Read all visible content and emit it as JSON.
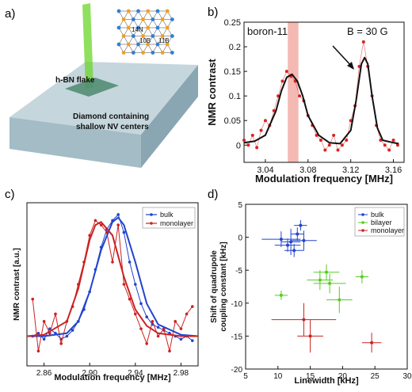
{
  "panel_labels": {
    "a": "a)",
    "b": "b)",
    "c": "c)",
    "d": "d)"
  },
  "illustration": {
    "flake_label": "h-BN flake",
    "substrate_label_line1": "Diamond containing",
    "substrate_label_line2": "shallow NV centers",
    "atom_labels": [
      "14N",
      "10B",
      "11B"
    ],
    "colors": {
      "laser": "#66dd22",
      "nitrogen": "#2f7fd6",
      "boron": "#f0a020",
      "substrate": "#a9bfc7"
    }
  },
  "chart_data": [
    {
      "id": "b",
      "type": "line",
      "title": "",
      "annotations": [
        "boron-11",
        "B = 30 G"
      ],
      "xlabel": "Modulation frequency [MHz]",
      "ylabel": "NMR contrast",
      "xlim": [
        3.02,
        3.17
      ],
      "ylim": [
        -0.035,
        0.25
      ],
      "xticks": [
        "3.04",
        "3.08",
        "3.12",
        "3.16"
      ],
      "yticks": [
        "0",
        "0.05",
        "0.1",
        "0.15",
        "0.2",
        "0.25"
      ],
      "highlight_band": {
        "x": [
          3.061,
          3.071
        ],
        "color": "#f2a8a0"
      },
      "grid": false,
      "series": [
        {
          "name": "",
          "style": "points",
          "color": "#dd2222",
          "x": [
            3.02,
            3.024,
            3.028,
            3.032,
            3.036,
            3.04,
            3.044,
            3.048,
            3.052,
            3.056,
            3.06,
            3.064,
            3.068,
            3.072,
            3.076,
            3.08,
            3.084,
            3.088,
            3.092,
            3.096,
            3.1,
            3.104,
            3.108,
            3.112,
            3.116,
            3.12,
            3.124,
            3.128,
            3.132,
            3.136,
            3.14,
            3.144,
            3.148,
            3.152,
            3.156,
            3.16,
            3.164
          ],
          "y": [
            0.01,
            0.0,
            0.02,
            -0.005,
            0.03,
            0.05,
            0.04,
            0.07,
            0.1,
            0.13,
            0.15,
            0.14,
            0.13,
            0.1,
            0.09,
            0.06,
            0.04,
            0.02,
            0.01,
            -0.01,
            0.0,
            0.02,
            -0.01,
            0.0,
            0.01,
            0.05,
            0.08,
            0.16,
            0.21,
            0.16,
            0.1,
            0.04,
            0.01,
            0.0,
            -0.01,
            0.01,
            0.0
          ]
        },
        {
          "name": "",
          "style": "fit",
          "color": "#111111",
          "x": [
            3.02,
            3.03,
            3.04,
            3.05,
            3.055,
            3.06,
            3.065,
            3.07,
            3.075,
            3.08,
            3.09,
            3.1,
            3.11,
            3.12,
            3.125,
            3.13,
            3.133,
            3.136,
            3.14,
            3.145,
            3.15,
            3.16,
            3.165
          ],
          "y": [
            0.005,
            0.008,
            0.02,
            0.07,
            0.11,
            0.138,
            0.144,
            0.13,
            0.1,
            0.06,
            0.02,
            0.005,
            0.003,
            0.03,
            0.09,
            0.165,
            0.178,
            0.165,
            0.1,
            0.035,
            0.01,
            0.005,
            0.003
          ]
        }
      ]
    },
    {
      "id": "c",
      "type": "line",
      "title": "",
      "xlabel": "Modulation frequency [MHz]",
      "ylabel": "NMR contrast [a.u.]",
      "xlim": [
        2.845,
        2.995
      ],
      "ylim": [
        0,
        1.1
      ],
      "xticks": [
        "2.86",
        "2.90",
        "2.94",
        "2.98"
      ],
      "yticks": [],
      "legend": {
        "position": "top-right",
        "entries": [
          "bulk",
          "monolayer"
        ]
      },
      "grid": false,
      "series": [
        {
          "name": "bulk",
          "color": "#2244cc",
          "x": [
            2.85,
            2.855,
            2.86,
            2.865,
            2.87,
            2.875,
            2.88,
            2.885,
            2.89,
            2.895,
            2.9,
            2.905,
            2.91,
            2.915,
            2.92,
            2.925,
            2.93,
            2.935,
            2.94,
            2.945,
            2.95,
            2.955,
            2.96,
            2.965,
            2.97,
            2.975,
            2.98,
            2.985,
            2.99
          ],
          "y": [
            0.2,
            0.22,
            0.18,
            0.25,
            0.22,
            0.18,
            0.2,
            0.24,
            0.3,
            0.38,
            0.5,
            0.65,
            0.8,
            0.92,
            0.98,
            1.02,
            0.9,
            0.7,
            0.55,
            0.42,
            0.33,
            0.28,
            0.26,
            0.24,
            0.22,
            0.2,
            0.18,
            0.2,
            0.17
          ]
        },
        {
          "name": "monolayer",
          "color": "#cc2222",
          "x": [
            2.85,
            2.855,
            2.86,
            2.865,
            2.87,
            2.875,
            2.88,
            2.885,
            2.89,
            2.895,
            2.9,
            2.905,
            2.91,
            2.915,
            2.92,
            2.925,
            2.93,
            2.935,
            2.94,
            2.945,
            2.95,
            2.955,
            2.96,
            2.965,
            2.97,
            2.975,
            2.98,
            2.985,
            2.99
          ],
          "y": [
            0.45,
            0.1,
            0.3,
            0.22,
            0.35,
            0.15,
            0.3,
            0.4,
            0.55,
            0.7,
            0.88,
            0.98,
            0.95,
            0.9,
            0.7,
            0.95,
            0.55,
            0.45,
            0.35,
            0.25,
            0.15,
            0.3,
            0.2,
            0.25,
            0.1,
            0.3,
            0.25,
            0.35,
            0.4
          ]
        },
        {
          "name": "bulk-fit",
          "color": "#2244cc",
          "x": [
            2.845,
            2.86,
            2.88,
            2.89,
            2.9,
            2.91,
            2.92,
            2.925,
            2.93,
            2.94,
            2.95,
            2.96,
            2.98,
            2.995
          ],
          "y": [
            0.2,
            0.2,
            0.22,
            0.3,
            0.5,
            0.78,
            0.97,
            1.0,
            0.95,
            0.7,
            0.42,
            0.28,
            0.21,
            0.2
          ]
        },
        {
          "name": "monolayer-fit",
          "color": "#cc2222",
          "x": [
            2.845,
            2.86,
            2.88,
            2.89,
            2.9,
            2.905,
            2.91,
            2.92,
            2.93,
            2.94,
            2.95,
            2.96,
            2.98,
            2.995
          ],
          "y": [
            0.2,
            0.21,
            0.3,
            0.52,
            0.85,
            0.95,
            0.97,
            0.88,
            0.6,
            0.38,
            0.27,
            0.22,
            0.2,
            0.2
          ]
        }
      ]
    },
    {
      "id": "d",
      "type": "scatter",
      "title": "",
      "xlabel": "Linewidth [kHz]",
      "ylabel_line1": "Shift of quadrupole",
      "ylabel_line2": "coupling constant [kHz]",
      "xlim": [
        5,
        30
      ],
      "ylim": [
        -20,
        5
      ],
      "xticks": [
        "5",
        "10",
        "15",
        "20",
        "25",
        "30"
      ],
      "yticks": [
        "-20",
        "-15",
        "-10",
        "-5",
        "0",
        "5"
      ],
      "legend": {
        "position": "top-right",
        "entries": [
          "bulk",
          "bilayer",
          "monolayer"
        ]
      },
      "grid": false,
      "series": [
        {
          "name": "bulk",
          "color": "#2244cc",
          "points": [
            {
              "x": 10.5,
              "y": -0.3,
              "xerr": 3.0,
              "yerr": 1.2
            },
            {
              "x": 12.0,
              "y": -0.7,
              "xerr": 1.5,
              "yerr": 2.0
            },
            {
              "x": 13.0,
              "y": 0.5,
              "xerr": 1.0,
              "yerr": 1.0
            },
            {
              "x": 13.5,
              "y": 1.8,
              "xerr": 1.0,
              "yerr": 0.8
            },
            {
              "x": 11.5,
              "y": -1.2,
              "xerr": 2.0,
              "yerr": 1.0
            },
            {
              "x": 14.0,
              "y": -0.5,
              "xerr": 2.0,
              "yerr": 1.5
            },
            {
              "x": 12.5,
              "y": -2.0,
              "xerr": 1.5,
              "yerr": 1.0
            }
          ]
        },
        {
          "name": "bilayer",
          "color": "#55cc22",
          "points": [
            {
              "x": 17.5,
              "y": -5.3,
              "xerr": 2.0,
              "yerr": 1.2
            },
            {
              "x": 16.5,
              "y": -6.5,
              "xerr": 2.0,
              "yerr": 1.5
            },
            {
              "x": 18.0,
              "y": -7.0,
              "xerr": 2.5,
              "yerr": 1.5
            },
            {
              "x": 19.5,
              "y": -9.5,
              "xerr": 2.0,
              "yerr": 2.0
            },
            {
              "x": 23.0,
              "y": -6.0,
              "xerr": 1.0,
              "yerr": 1.0
            },
            {
              "x": 10.5,
              "y": -8.8,
              "xerr": 1.0,
              "yerr": 0.7
            }
          ]
        },
        {
          "name": "monolayer",
          "color": "#cc2222",
          "points": [
            {
              "x": 14.0,
              "y": -12.5,
              "xerr": 5.0,
              "yerr": 2.5
            },
            {
              "x": 15.0,
              "y": -15.0,
              "xerr": 2.0,
              "yerr": 2.5
            },
            {
              "x": 24.5,
              "y": -16.0,
              "xerr": 1.5,
              "yerr": 1.5
            }
          ]
        }
      ]
    }
  ]
}
